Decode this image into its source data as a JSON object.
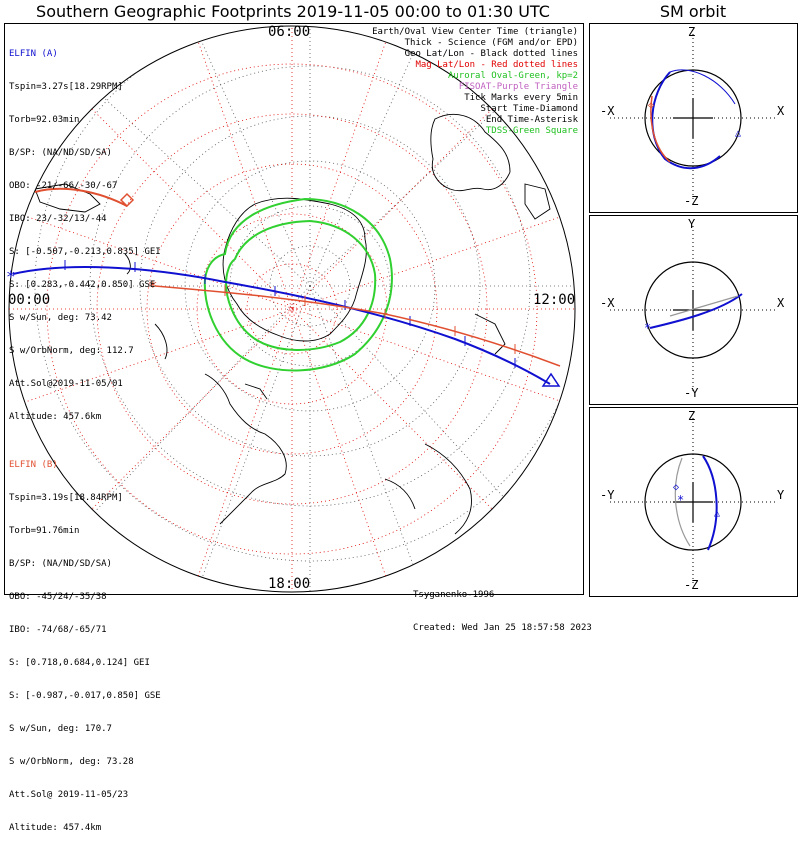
{
  "title": "Southern Geographic Footprints 2019-11-05 00:00 to 01:30 UTC",
  "sm_title": "SM orbit",
  "hours": {
    "top": "06:00",
    "left": "00:00",
    "right": "12:00",
    "bottom": "18:00"
  },
  "legend": [
    {
      "text": "Earth/Oval View Center Time (triangle)",
      "color": "#000000"
    },
    {
      "text": "Thick - Science (FGM and/or EPD)",
      "color": "#000000"
    },
    {
      "text": "Geo Lat/Lon - Black dotted lines",
      "color": "#000000"
    },
    {
      "text": "Mag Lat/Lon - Red dotted lines",
      "color": "#e00000"
    },
    {
      "text": "Auroral Oval-Green, kp=2",
      "color": "#20c020"
    },
    {
      "text": "FISOAT-Purple Triangle",
      "color": "#c060c0"
    },
    {
      "text": "Tick Marks every 5min",
      "color": "#000000"
    },
    {
      "text": "Start Time-Diamond",
      "color": "#000000"
    },
    {
      "text": "End Time-Asterisk",
      "color": "#000000"
    },
    {
      "text": "TDSS-Green Square",
      "color": "#20c020"
    }
  ],
  "elfin_a": {
    "header": "ELFIN (A)",
    "lines": [
      "Tspin=3.27s[18.29RPM]",
      "Torb=92.03min",
      "B/SP: (NA/ND/SD/SA)",
      "OBO: -21/-66/-30/-67",
      "IBO: 23/-32/13/-44",
      "S: [-0.507,-0.213,0.835] GEI",
      "S: [0.283,-0.442,0.850] GSE",
      "S w/Sun, deg: 73.42",
      "S w/OrbNorm, deg: 112.7",
      "Att.Sol@2019-11-05/01",
      "Altitude: 457.6km"
    ]
  },
  "elfin_b": {
    "header": "ELFIN (B)",
    "lines": [
      "Tspin=3.19s[18.84RPM]",
      "Torb=91.76min",
      "B/SP: (NA/ND/SD/SA)",
      "OBO: -45/24/-35/38",
      "IBO: -74/68/-65/71",
      "S: [0.718,0.684,0.124] GEI",
      "S: [-0.987,-0.017,0.850] GSE",
      "S w/Sun, deg: 170.7",
      "S w/OrbNorm, deg: 73.28",
      "Att.Sol@ 2019-11-05/23",
      "Altitude: 457.4km"
    ]
  },
  "credit": {
    "model": "Tsyganenko-1996",
    "created": "Created: Wed Jan 25 18:57:58 2023"
  },
  "sm_panels": [
    {
      "top": "Z",
      "bottom": "-Z",
      "left": "-X",
      "right": "X"
    },
    {
      "top": "Y",
      "bottom": "-Y",
      "left": "-X",
      "right": "X"
    },
    {
      "top": "Z",
      "bottom": "-Z",
      "left": "-Y",
      "right": "Y"
    }
  ],
  "colors": {
    "elfin_a": "#1010d0",
    "elfin_b": "#e05030",
    "oval": "#30d030",
    "grid_mag": "#e00000"
  }
}
